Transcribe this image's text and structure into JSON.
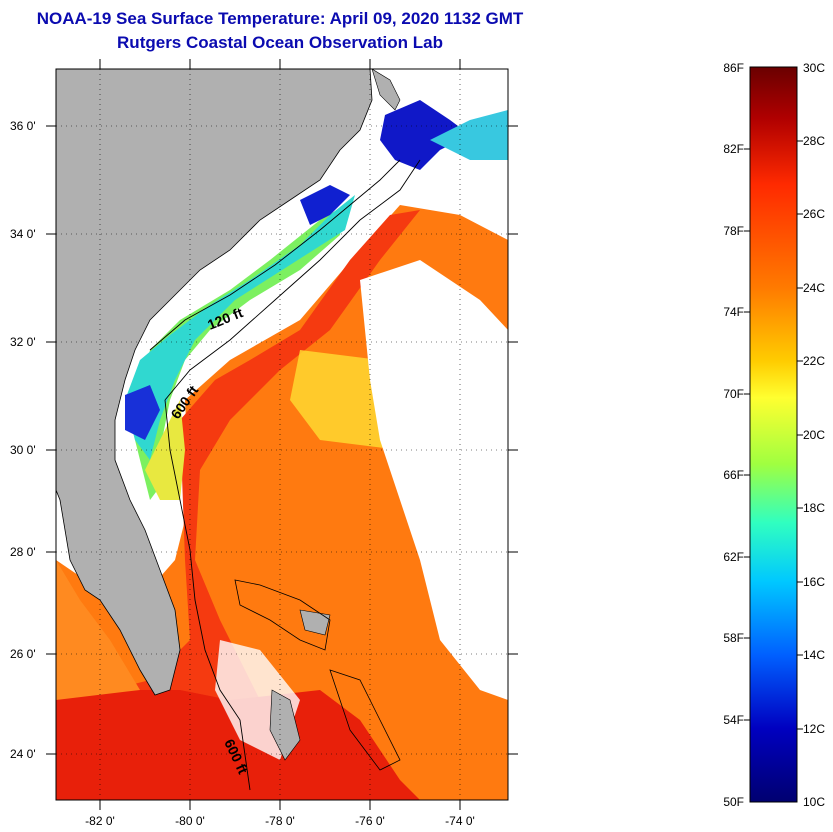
{
  "header": {
    "title": "NOAA-19 Sea Surface Temperature:  April 09, 2020 1132 GMT",
    "subtitle": "Rutgers Coastal Ocean Observation Lab"
  },
  "map": {
    "lat_labels": [
      "36 0'",
      "34 0'",
      "32 0'",
      "30 0'",
      "28 0'",
      "26 0'",
      "24 0'"
    ],
    "lon_labels": [
      "-82 0'",
      "-80 0'",
      "-78 0'",
      "-76 0'",
      "-74 0'"
    ],
    "contour_labels": {
      "shelf_120": "120 ft",
      "shelf_600_north": "600 ft",
      "shelf_600_south": "600 ft"
    },
    "colors": {
      "land": "#b0b0b0",
      "cloud": "#ffffff",
      "warm": "#f22a0a",
      "orange": "#ff8a10",
      "yellow": "#ffd820",
      "cyan": "#30e0d0",
      "cold": "#1010c0"
    }
  },
  "colorbar": {
    "fahrenheit": [
      "86F",
      "82F",
      "78F",
      "74F",
      "70F",
      "66F",
      "62F",
      "58F",
      "54F",
      "50F"
    ],
    "celsius": [
      "30C",
      "28C",
      "26C",
      "24C",
      "22C",
      "20C",
      "18C",
      "16C",
      "14C",
      "12C",
      "10C"
    ],
    "scale_colors": [
      "#6a0000",
      "#b00000",
      "#ff2a00",
      "#ff7a00",
      "#ffcc00",
      "#ffff30",
      "#a0ff40",
      "#30ffc0",
      "#00c8ff",
      "#0060ff",
      "#0000c0",
      "#000070"
    ]
  }
}
